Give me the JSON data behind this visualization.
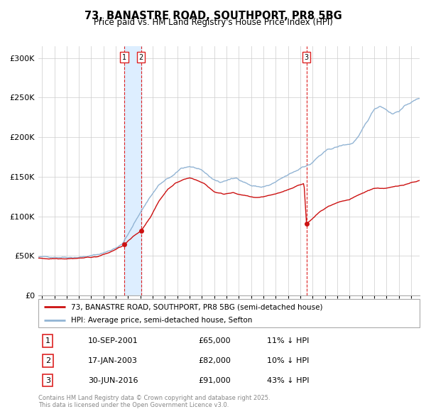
{
  "title": "73, BANASTRE ROAD, SOUTHPORT, PR8 5BG",
  "subtitle": "Price paid vs. HM Land Registry's House Price Index (HPI)",
  "legend_property": "73, BANASTRE ROAD, SOUTHPORT, PR8 5BG (semi-detached house)",
  "legend_hpi": "HPI: Average price, semi-detached house, Sefton",
  "transactions": [
    {
      "num": 1,
      "date": "10-SEP-2001",
      "price": 65000,
      "pct": "11% ↓ HPI"
    },
    {
      "num": 2,
      "date": "17-JAN-2003",
      "price": 82000,
      "pct": "10% ↓ HPI"
    },
    {
      "num": 3,
      "date": "30-JUN-2016",
      "price": 91000,
      "pct": "43% ↓ HPI"
    }
  ],
  "transaction_dates_decimal": [
    2001.69,
    2003.05,
    2016.5
  ],
  "transaction_prices": [
    65000,
    82000,
    91000
  ],
  "ylabel_ticks": [
    "£0",
    "£50K",
    "£100K",
    "£150K",
    "£200K",
    "£250K",
    "£300K"
  ],
  "ytick_values": [
    0,
    50000,
    100000,
    150000,
    200000,
    250000,
    300000
  ],
  "ylim": [
    0,
    315000
  ],
  "xlim_start": 1994.7,
  "xlim_end": 2025.7,
  "hpi_color": "#92b4d4",
  "price_color": "#cc1111",
  "marker_color": "#cc1111",
  "vspan_color": "#ddeeff",
  "vline_color": "#dd2222",
  "grid_color": "#cccccc",
  "footer": "Contains HM Land Registry data © Crown copyright and database right 2025.\nThis data is licensed under the Open Government Licence v3.0.",
  "footnote_color": "#888888"
}
